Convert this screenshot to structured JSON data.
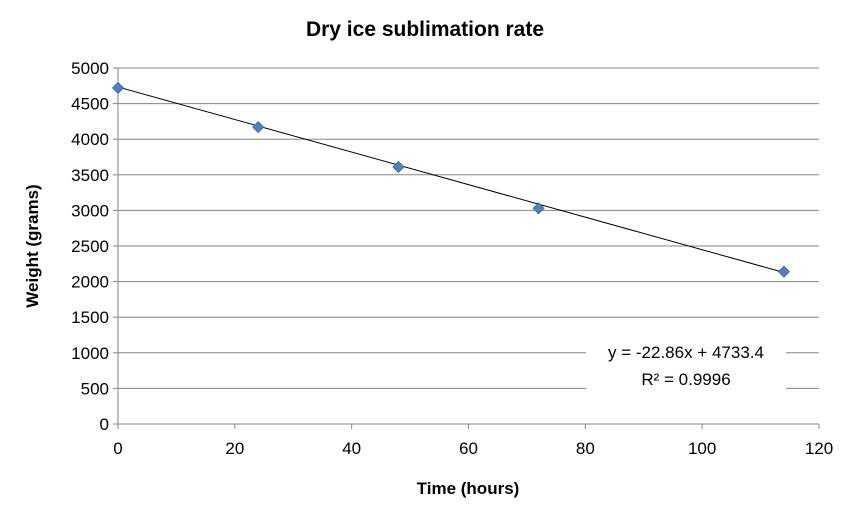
{
  "chart_data": {
    "type": "scatter",
    "title": "Dry ice sublimation rate",
    "xlabel": "Time (hours)",
    "ylabel": "Weight (grams)",
    "xlim": [
      0,
      120
    ],
    "ylim": [
      0,
      5000
    ],
    "xticks": [
      0,
      20,
      40,
      60,
      80,
      100,
      120
    ],
    "yticks": [
      0,
      500,
      1000,
      1500,
      2000,
      2500,
      3000,
      3500,
      4000,
      4500,
      5000
    ],
    "grid": "horizontal",
    "legend": "none",
    "series": [
      {
        "x": [
          0,
          24,
          48,
          72,
          114
        ],
        "y": [
          4720,
          4170,
          3610,
          3030,
          2140
        ],
        "marker": "diamond",
        "color": "#4F81BD"
      }
    ],
    "trendline": {
      "type": "linear",
      "slope": -22.86,
      "intercept": 4733.4,
      "x_range": [
        0,
        114
      ],
      "color": "#000000",
      "equation": "y = -22.86x + 4733.4",
      "r_squared": "R² = 0.9996"
    }
  }
}
